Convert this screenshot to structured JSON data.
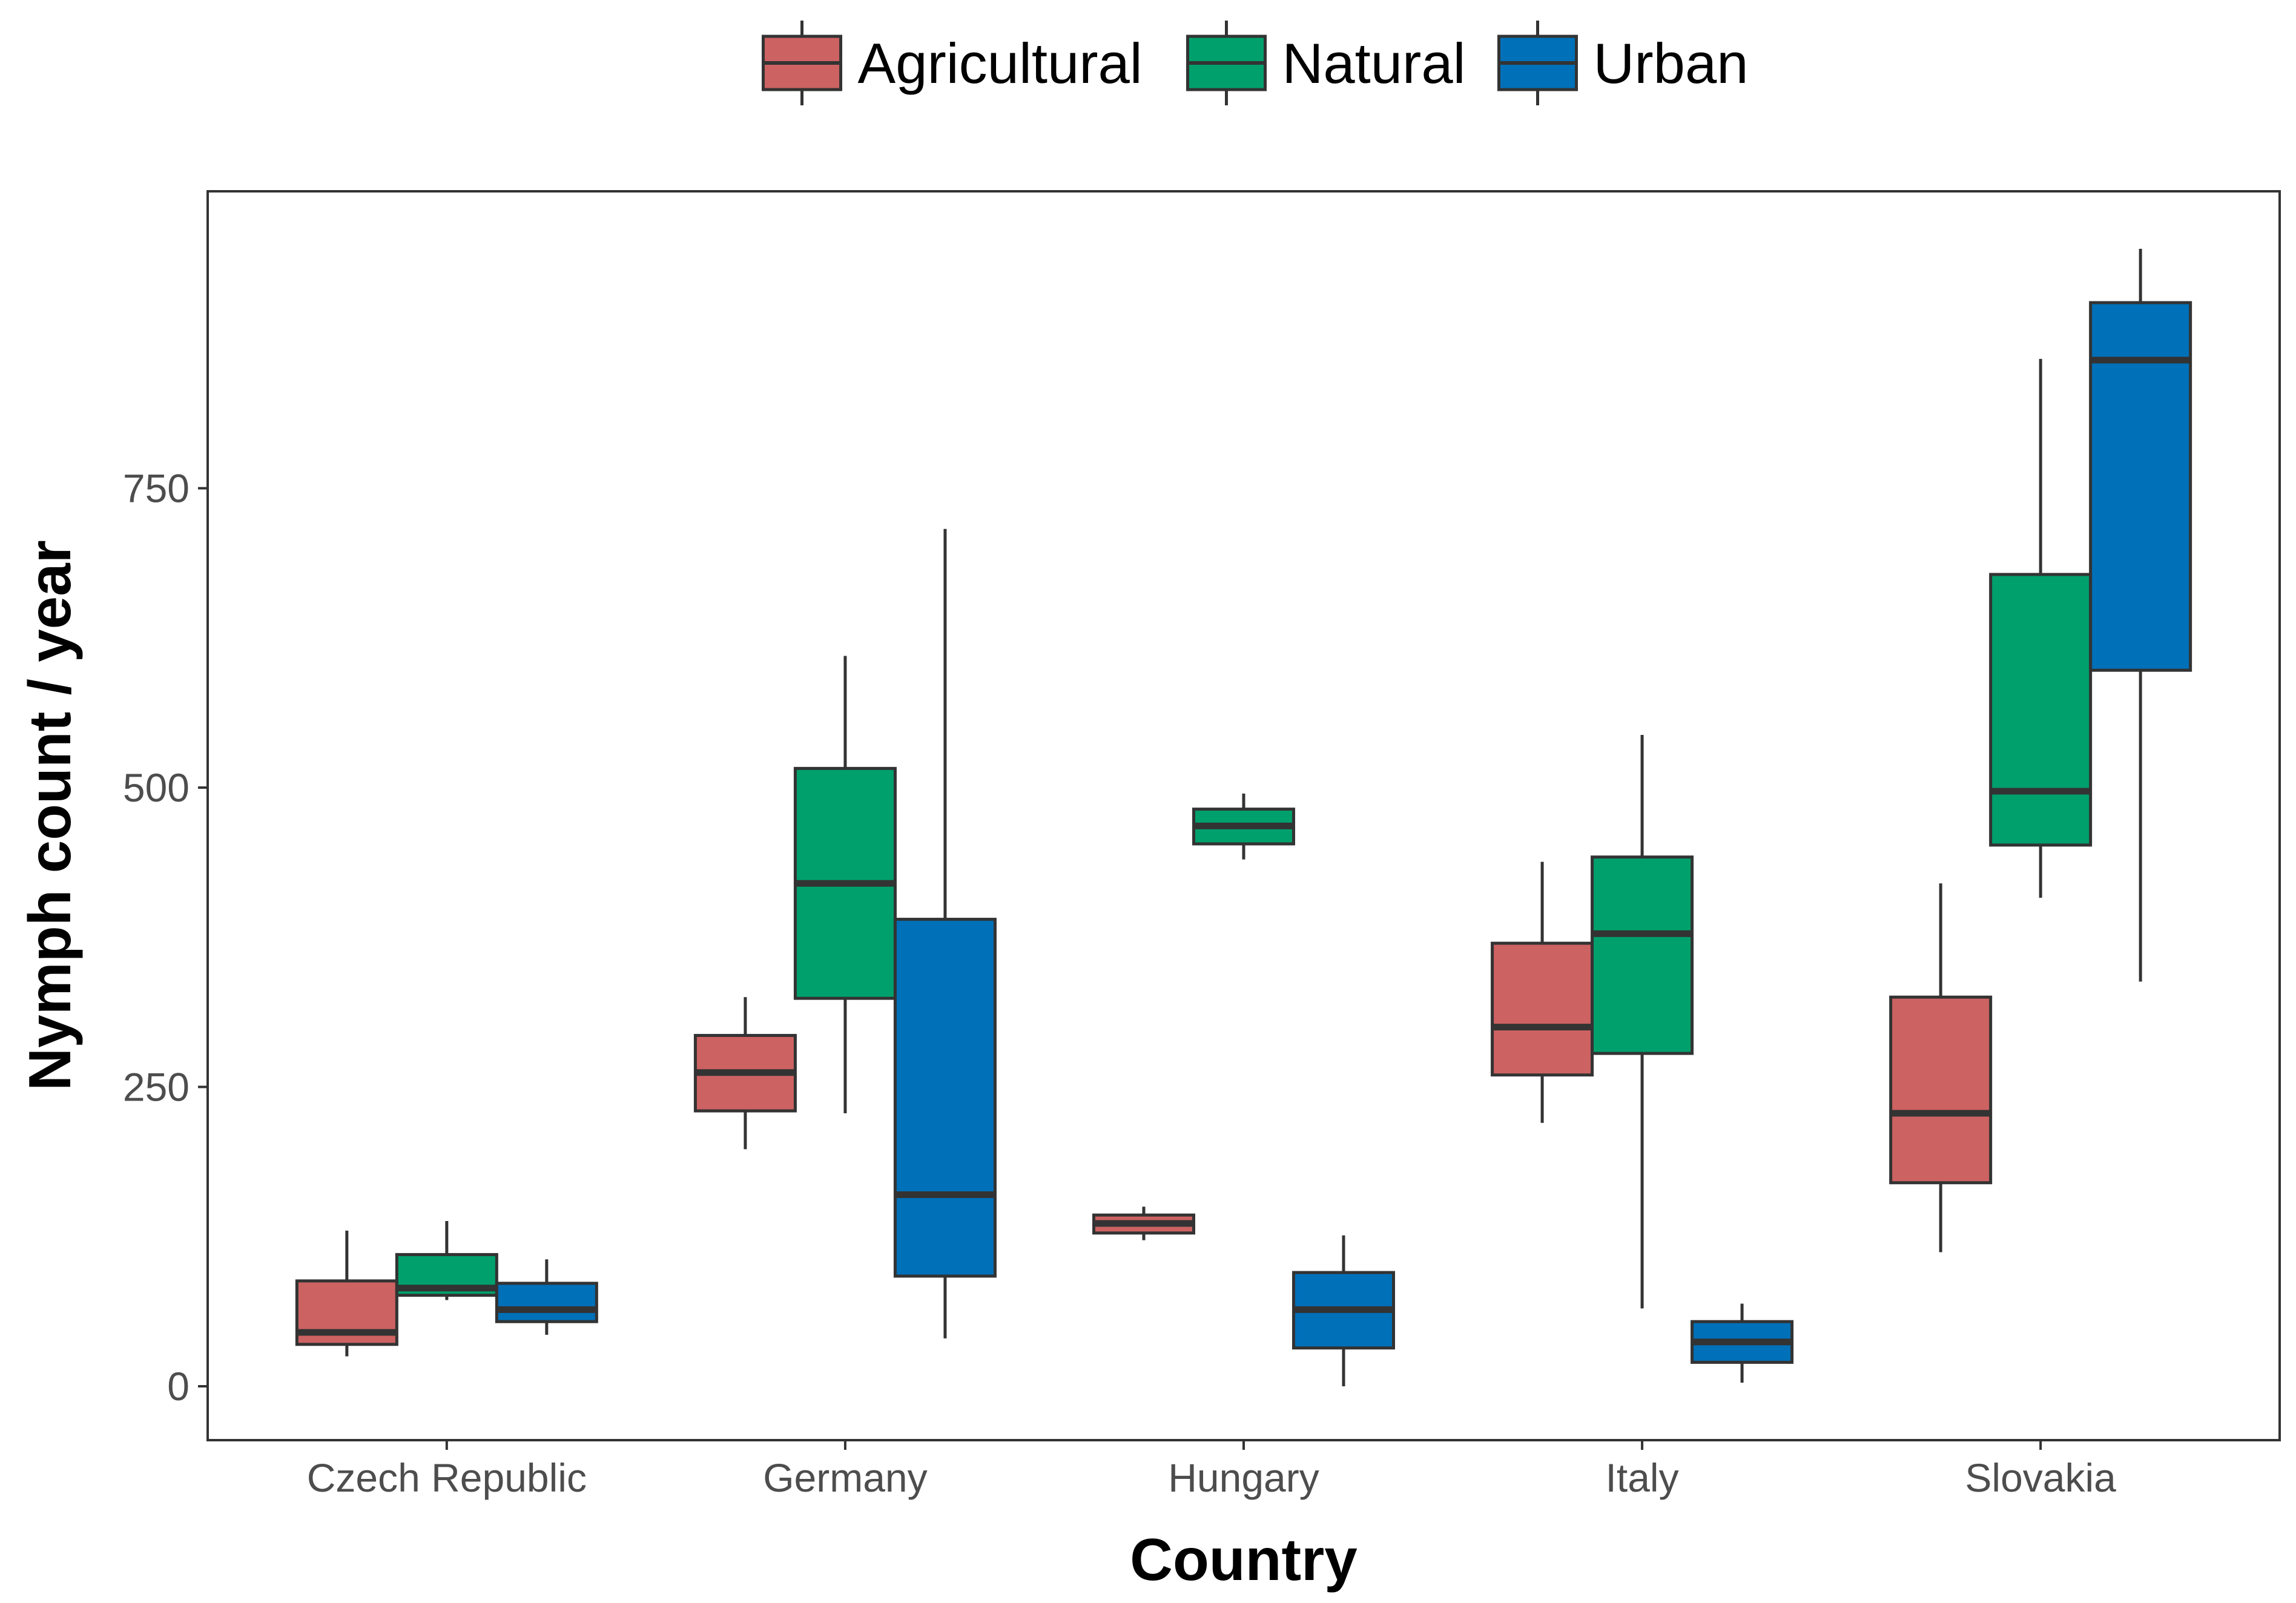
{
  "chart_data": {
    "type": "boxplot",
    "title": "",
    "xlabel": "Country",
    "ylabel": "Nymph count / year",
    "ylim": [
      -45,
      998
    ],
    "yticks": [
      0,
      250,
      500,
      750
    ],
    "ytick_labels": [
      "0",
      "250",
      "500",
      "750"
    ],
    "grid": false,
    "legend_position": "top",
    "categories": [
      "Czech Republic",
      "Germany",
      "Hungary",
      "Italy",
      "Slovakia"
    ],
    "series": [
      {
        "name": "Agricultural",
        "color": "#cd6262",
        "boxes": [
          {
            "category": "Czech Republic",
            "min": 25,
            "q1": 35,
            "median": 45,
            "q3": 88,
            "max": 130
          },
          {
            "category": "Germany",
            "min": 198,
            "q1": 230,
            "median": 262,
            "q3": 293,
            "max": 325
          },
          {
            "category": "Hungary",
            "min": 122,
            "q1": 128,
            "median": 136,
            "q3": 143,
            "max": 150
          },
          {
            "category": "Italy",
            "min": 220,
            "q1": 260,
            "median": 300,
            "q3": 370,
            "max": 438
          },
          {
            "category": "Slovakia",
            "min": 112,
            "q1": 170,
            "median": 228,
            "q3": 325,
            "max": 420
          }
        ]
      },
      {
        "name": "Natural",
        "color": "#00a06c",
        "boxes": [
          {
            "category": "Czech Republic",
            "min": 72,
            "q1": 76,
            "median": 82,
            "q3": 110,
            "max": 138
          },
          {
            "category": "Germany",
            "min": 228,
            "q1": 324,
            "median": 420,
            "q3": 516,
            "max": 610
          },
          {
            "category": "Hungary",
            "min": 440,
            "q1": 453,
            "median": 468,
            "q3": 482,
            "max": 495
          },
          {
            "category": "Italy",
            "min": 65,
            "q1": 278,
            "median": 378,
            "q3": 442,
            "max": 544
          },
          {
            "category": "Slovakia",
            "min": 408,
            "q1": 452,
            "median": 497,
            "q3": 678,
            "max": 858
          }
        ]
      },
      {
        "name": "Urban",
        "color": "#0070b8",
        "boxes": [
          {
            "category": "Czech Republic",
            "min": 43,
            "q1": 54,
            "median": 64,
            "q3": 86,
            "max": 106
          },
          {
            "category": "Germany",
            "min": 40,
            "q1": 92,
            "median": 160,
            "q3": 390,
            "max": 716
          },
          {
            "category": "Hungary",
            "min": 0,
            "q1": 32,
            "median": 64,
            "q3": 95,
            "max": 126
          },
          {
            "category": "Italy",
            "min": 3,
            "q1": 20,
            "median": 37,
            "q3": 54,
            "max": 69
          },
          {
            "category": "Slovakia",
            "min": 338,
            "q1": 598,
            "median": 857,
            "q3": 905,
            "max": 950
          }
        ]
      }
    ]
  }
}
